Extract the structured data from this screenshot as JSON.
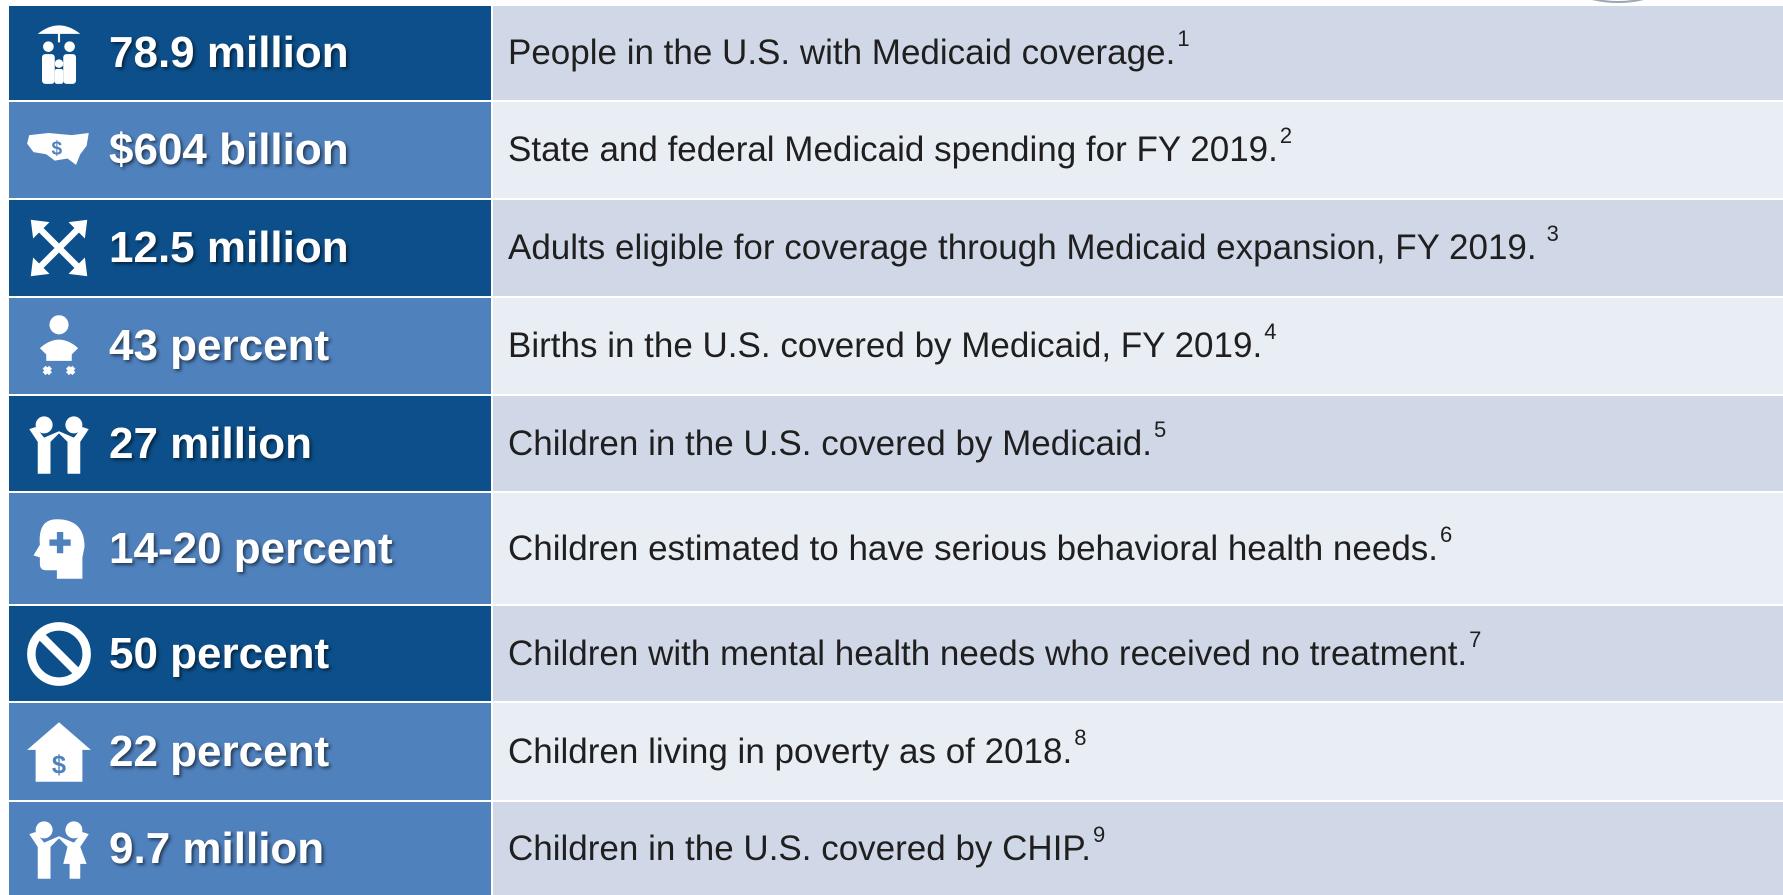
{
  "rows": [
    {
      "stat": "78.9 million",
      "text": "People in the U.S. with Medicaid coverage.",
      "note": "1"
    },
    {
      "stat": "$604 billion",
      "text": "State and federal Medicaid spending for FY 2019.",
      "note": "2"
    },
    {
      "stat": "12.5 million",
      "text": "Adults eligible for coverage through Medicaid expansion, FY 2019.",
      "note": "3"
    },
    {
      "stat": "43 percent",
      "text": "Births in the U.S. covered by Medicaid, FY 2019.",
      "note": "4"
    },
    {
      "stat": "27 million",
      "text": "Children in the U.S. covered by Medicaid.",
      "note": "5"
    },
    {
      "stat": "14-20 percent",
      "text": "Children estimated to have serious behavioral health needs.",
      "note": "6"
    },
    {
      "stat": "50 percent",
      "text": "Children with mental health needs who received no treatment.",
      "note": "7"
    },
    {
      "stat": "22 percent",
      "text": "Children living in poverty as of 2018.",
      "note": "8"
    },
    {
      "stat": "9.7 million",
      "text": "Children in the U.S. covered by CHIP.",
      "note": "9"
    }
  ]
}
